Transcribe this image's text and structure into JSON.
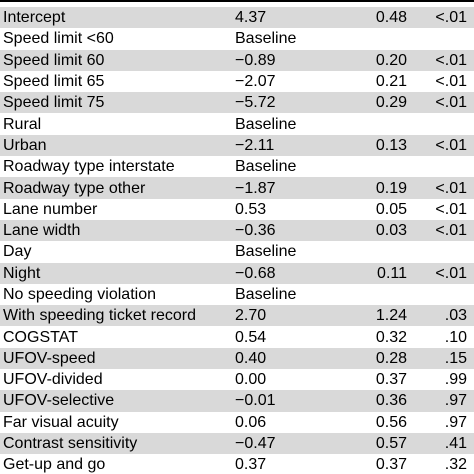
{
  "rows": [
    {
      "label": "Intercept",
      "estimate": "4.37",
      "se": "0.48",
      "p": "<.01",
      "shaded": true
    },
    {
      "label": "Speed limit <60",
      "estimate": "Baseline",
      "se": "",
      "p": "",
      "shaded": false
    },
    {
      "label": "Speed limit 60",
      "estimate": "−0.89",
      "se": "0.20",
      "p": "<.01",
      "shaded": true
    },
    {
      "label": "Speed limit 65",
      "estimate": "−2.07",
      "se": "0.21",
      "p": "<.01",
      "shaded": false
    },
    {
      "label": "Speed limit 75",
      "estimate": "−5.72",
      "se": "0.29",
      "p": "<.01",
      "shaded": true
    },
    {
      "label": "Rural",
      "estimate": "Baseline",
      "se": "",
      "p": "",
      "shaded": false
    },
    {
      "label": "Urban",
      "estimate": "−2.11",
      "se": "0.13",
      "p": "<.01",
      "shaded": true
    },
    {
      "label": "Roadway type interstate",
      "estimate": "Baseline",
      "se": "",
      "p": "",
      "shaded": false
    },
    {
      "label": "Roadway type other",
      "estimate": "−1.87",
      "se": "0.19",
      "p": "<.01",
      "shaded": true
    },
    {
      "label": "Lane number",
      "estimate": "0.53",
      "se": "0.05",
      "p": "<.01",
      "shaded": false
    },
    {
      "label": "Lane width",
      "estimate": "−0.36",
      "se": "0.03",
      "p": "<.01",
      "shaded": true
    },
    {
      "label": "Day",
      "estimate": "Baseline",
      "se": "",
      "p": "",
      "shaded": false
    },
    {
      "label": "Night",
      "estimate": "−0.68",
      "se": "0.11",
      "p": "<.01",
      "shaded": true
    },
    {
      "label": "No speeding violation",
      "estimate": "Baseline",
      "se": "",
      "p": "",
      "shaded": false
    },
    {
      "label": "With speeding ticket record",
      "estimate": "2.70",
      "se": "1.24",
      "p": ".03",
      "shaded": true
    },
    {
      "label": "COGSTAT",
      "estimate": "0.54",
      "se": "0.32",
      "p": ".10",
      "shaded": false
    },
    {
      "label": "UFOV-speed",
      "estimate": "0.40",
      "se": "0.28",
      "p": ".15",
      "shaded": true
    },
    {
      "label": "UFOV-divided",
      "estimate": "0.00",
      "se": "0.37",
      "p": ".99",
      "shaded": false
    },
    {
      "label": "UFOV-selective",
      "estimate": "−0.01",
      "se": "0.36",
      "p": ".97",
      "shaded": true
    },
    {
      "label": "Far visual acuity",
      "estimate": "0.06",
      "se": "0.56",
      "p": ".97",
      "shaded": false
    },
    {
      "label": "Contrast sensitivity",
      "estimate": "−0.47",
      "se": "0.57",
      "p": ".41",
      "shaded": true
    },
    {
      "label": "Get-up and go",
      "estimate": "0.37",
      "se": "0.37",
      "p": ".32",
      "shaded": false
    }
  ]
}
